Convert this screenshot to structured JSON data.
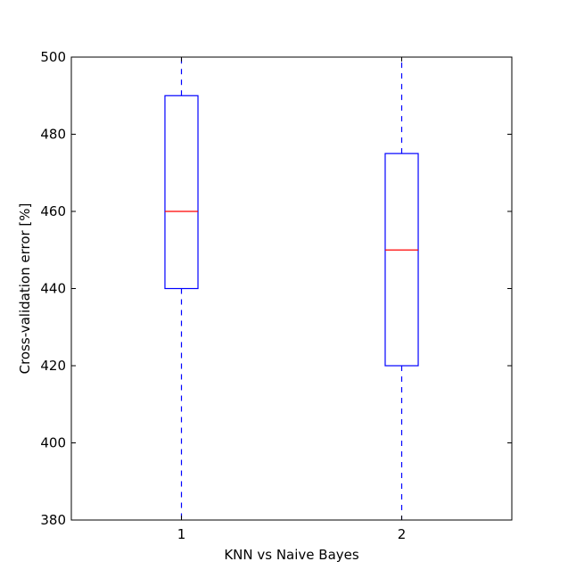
{
  "chart_data": {
    "type": "box",
    "title": "",
    "xlabel": "KNN vs Naive Bayes",
    "ylabel": "Cross-validation error [%]",
    "ylim": [
      380,
      500
    ],
    "yticks": [
      380,
      400,
      420,
      440,
      460,
      480,
      500
    ],
    "categories": [
      "1",
      "2"
    ],
    "boxes": [
      {
        "q1": 440,
        "median": 460,
        "q3": 490,
        "whisker_low": 380,
        "whisker_high": 500
      },
      {
        "q1": 420,
        "median": 450,
        "q3": 475,
        "whisker_low": 380,
        "whisker_high": 500
      }
    ],
    "grid": false,
    "colors": {
      "box": "#0000ff",
      "median": "#ff0000",
      "whisker": "#0000ff",
      "axes": "#000000"
    }
  }
}
